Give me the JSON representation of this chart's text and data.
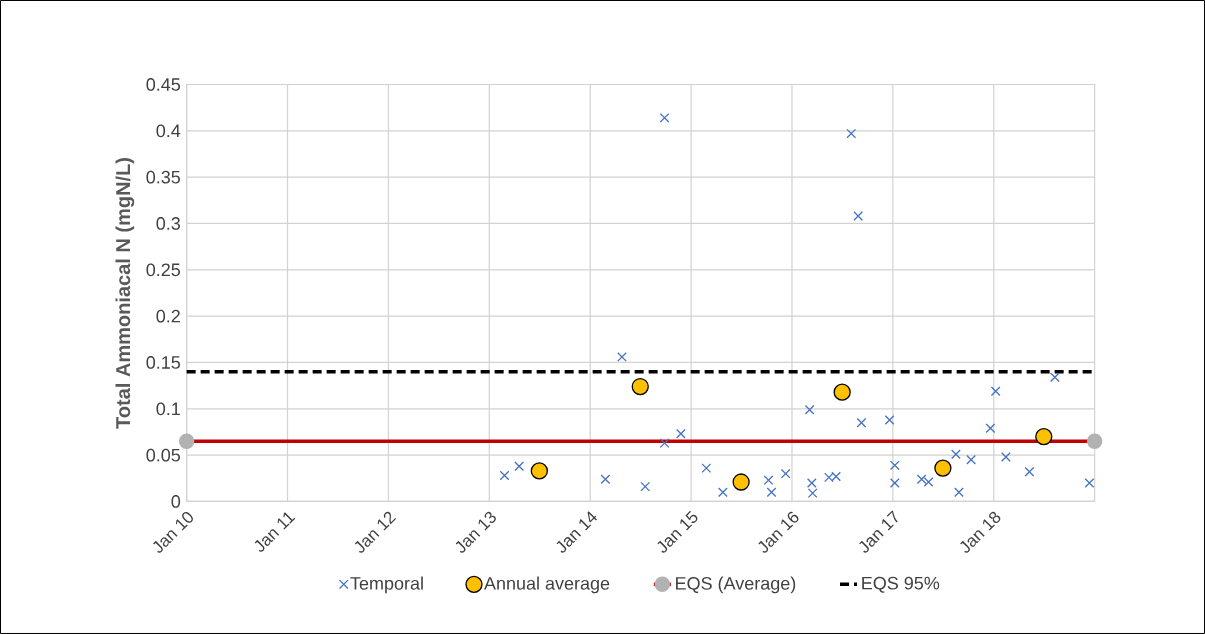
{
  "chart_data": {
    "type": "scatter",
    "ylabel": "Total Ammoniacal N (mgN/L)",
    "xlim": [
      "2010-01-01",
      "2019-01-01"
    ],
    "ylim": [
      0,
      0.45
    ],
    "xticks": [
      {
        "value": "2010-01-01",
        "label": "Jan 10"
      },
      {
        "value": "2011-01-01",
        "label": "Jan 11"
      },
      {
        "value": "2012-01-01",
        "label": "Jan 12"
      },
      {
        "value": "2013-01-01",
        "label": "Jan 13"
      },
      {
        "value": "2014-01-01",
        "label": "Jan 14"
      },
      {
        "value": "2015-01-01",
        "label": "Jan 15"
      },
      {
        "value": "2016-01-01",
        "label": "Jan 16"
      },
      {
        "value": "2017-01-01",
        "label": "Jan 17"
      },
      {
        "value": "2018-01-01",
        "label": "Jan 18"
      }
    ],
    "yticks": [
      0,
      0.05,
      0.1,
      0.15,
      0.2,
      0.25,
      0.3,
      0.35,
      0.4,
      0.45
    ],
    "grid": true,
    "legend": "bottom",
    "series": [
      {
        "name": "Temporal",
        "marker": "cross",
        "color": "#4472c4",
        "x": [
          "2013-02-25",
          "2013-04-19",
          "2014-02-25",
          "2014-04-26",
          "2014-07-19",
          "2014-09-27",
          "2014-09-27",
          "2014-11-25",
          "2015-02-25",
          "2015-04-26",
          "2015-10-08",
          "2015-10-19",
          "2015-12-09",
          "2016-03-05",
          "2016-03-13",
          "2016-03-16",
          "2016-05-14",
          "2016-06-09",
          "2016-08-03",
          "2016-08-28",
          "2016-09-09",
          "2016-12-20",
          "2017-01-08",
          "2017-01-08",
          "2017-04-15",
          "2017-05-10",
          "2017-08-17",
          "2017-08-28",
          "2017-10-11",
          "2017-12-20",
          "2018-01-08",
          "2018-02-14",
          "2018-05-10",
          "2018-08-10",
          "2018-12-13"
        ],
        "values": [
          0.028,
          0.038,
          0.024,
          0.156,
          0.016,
          0.414,
          0.063,
          0.073,
          0.036,
          0.01,
          0.023,
          0.01,
          0.03,
          0.099,
          0.02,
          0.009,
          0.026,
          0.027,
          0.397,
          0.308,
          0.085,
          0.088,
          0.039,
          0.02,
          0.024,
          0.021,
          0.051,
          0.01,
          0.045,
          0.079,
          0.119,
          0.048,
          0.032,
          0.134,
          0.02
        ]
      },
      {
        "name": "Annual average",
        "marker": "circle",
        "color": "#ffc000",
        "x": [
          "2013-07-01",
          "2014-07-01",
          "2015-07-01",
          "2016-07-01",
          "2017-07-01",
          "2018-07-01"
        ],
        "values": [
          0.033,
          0.124,
          0.021,
          0.118,
          0.036,
          0.07
        ]
      },
      {
        "name": "EQS (Average)",
        "type": "line",
        "marker": "circle",
        "line_style": "solid",
        "color": "#c00000",
        "x": [
          "2010-01-01",
          "2019-01-01"
        ],
        "values": [
          0.065,
          0.065
        ]
      },
      {
        "name": "EQS 95%",
        "type": "line",
        "marker": "none",
        "line_style": "dashed",
        "color": "#000000",
        "x": [
          "2010-01-01",
          "2019-01-01"
        ],
        "values": [
          0.14,
          0.14
        ]
      }
    ]
  }
}
